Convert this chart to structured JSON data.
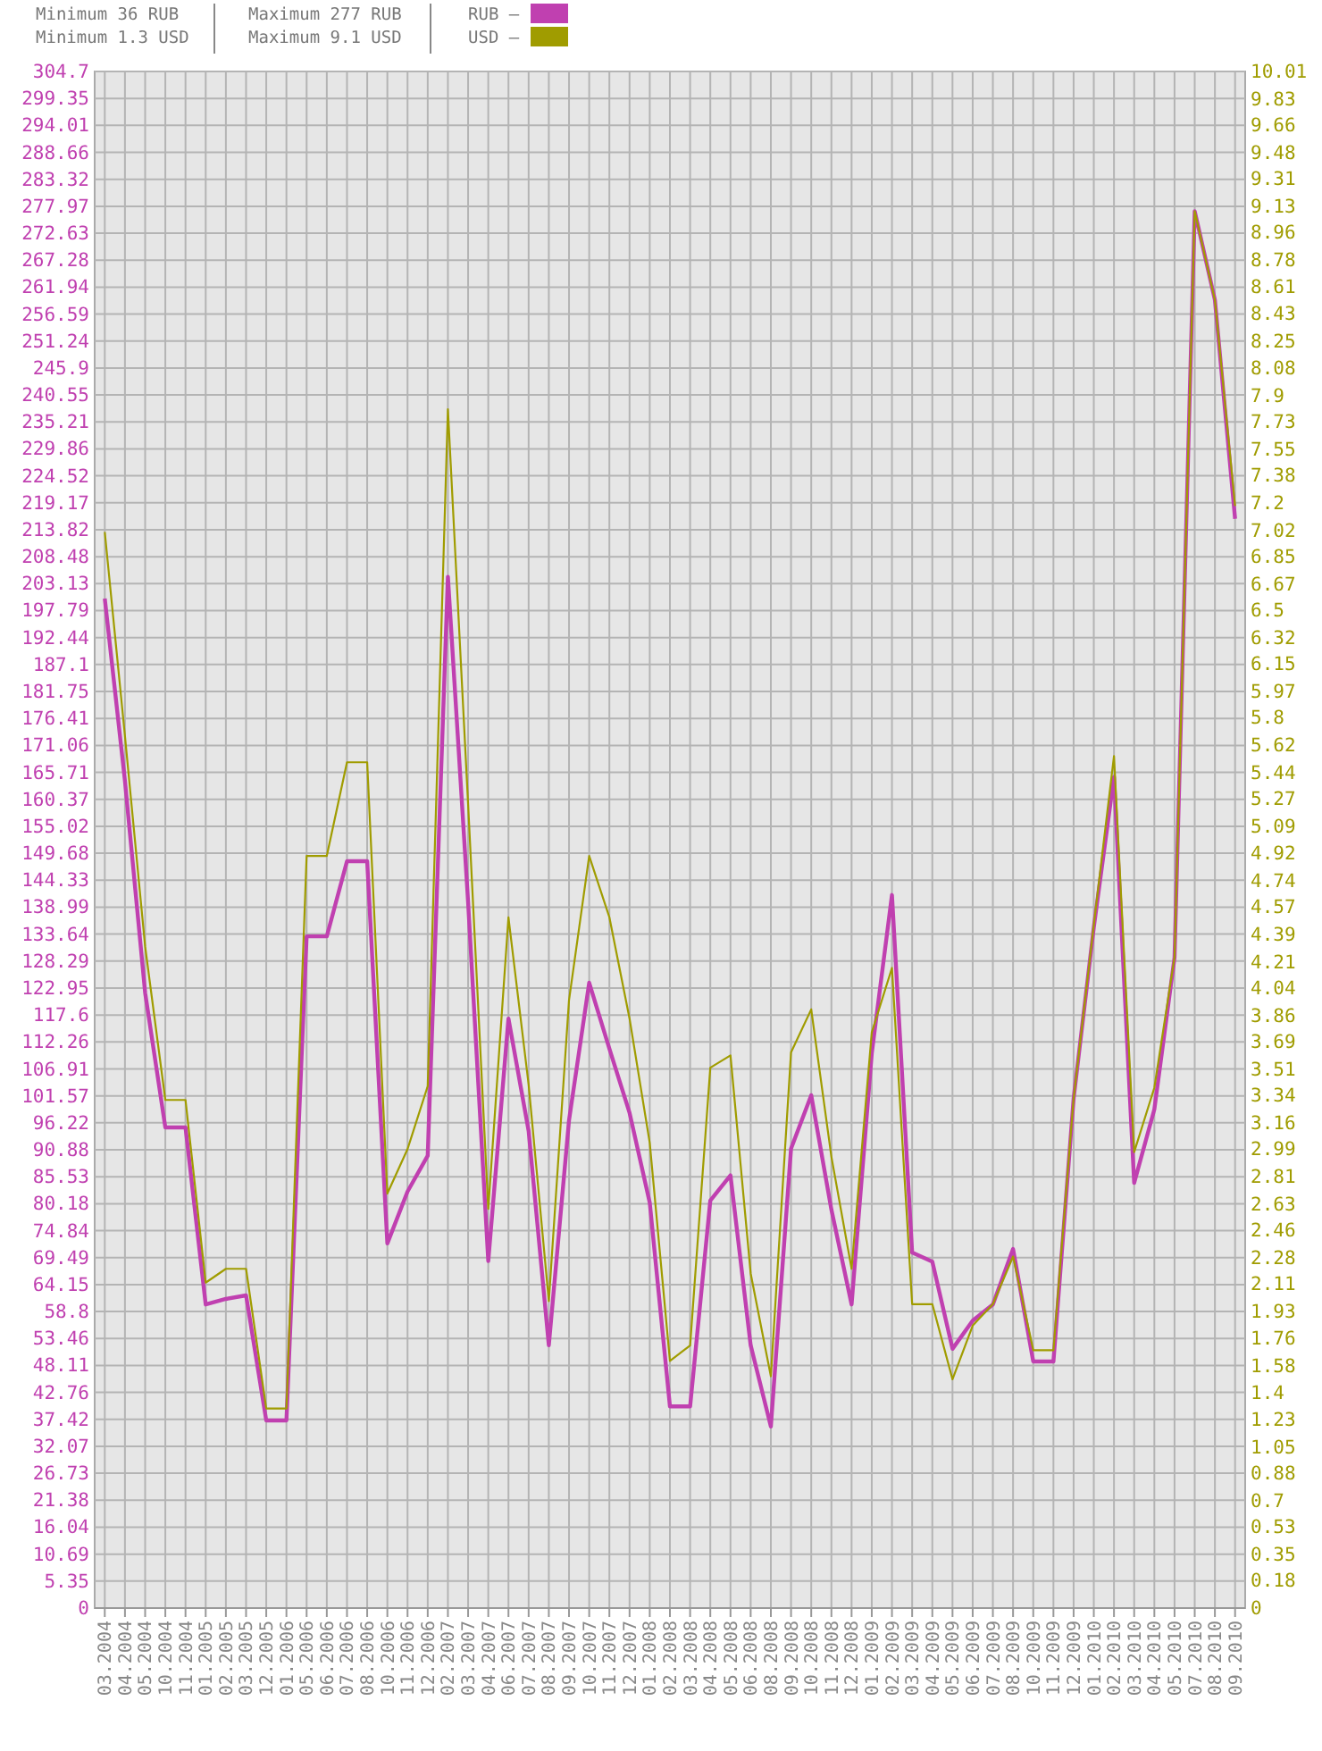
{
  "chart_data": {
    "type": "line",
    "annotations": [
      "Minimum 36 RUB",
      "Minimum 1.3 USD",
      "Maximum 277 RUB",
      "Maximum 9.1 USD"
    ],
    "categories": [
      "03.2004",
      "04.2004",
      "05.2004",
      "10.2004",
      "11.2004",
      "01.2005",
      "02.2005",
      "03.2005",
      "12.2005",
      "01.2006",
      "05.2006",
      "06.2006",
      "07.2006",
      "08.2006",
      "10.2006",
      "11.2006",
      "12.2006",
      "02.2007",
      "03.2007",
      "04.2007",
      "06.2007",
      "07.2007",
      "08.2007",
      "09.2007",
      "10.2007",
      "11.2007",
      "12.2007",
      "01.2008",
      "02.2008",
      "03.2008",
      "04.2008",
      "05.2008",
      "06.2008",
      "08.2008",
      "09.2008",
      "10.2008",
      "11.2008",
      "12.2008",
      "01.2009",
      "02.2009",
      "03.2009",
      "04.2009",
      "05.2009",
      "06.2009",
      "07.2009",
      "08.2009",
      "10.2009",
      "11.2009",
      "12.2009",
      "01.2010",
      "02.2010",
      "03.2010",
      "04.2010",
      "05.2010",
      "07.2010",
      "08.2010",
      "09.2010"
    ],
    "series": [
      {
        "name": "RUB –",
        "color": "#c040b0",
        "values": [
          200.2,
          164,
          122,
          95.3,
          95.3,
          60.2,
          61.3,
          62,
          37.2,
          37.2,
          133.2,
          133.2,
          148.1,
          148.1,
          72.3,
          82.6,
          89.7,
          204.5,
          140,
          68.8,
          116.9,
          94.6,
          52.1,
          96.7,
          124,
          110.9,
          98.2,
          80.4,
          40,
          40,
          80.8,
          85.8,
          52.1,
          36,
          91.1,
          101.7,
          79,
          60.2,
          110,
          141.4,
          70.5,
          68.7,
          51.4,
          57,
          60.2,
          71.2,
          48.9,
          48.9,
          101,
          135,
          164.8,
          84.3,
          98.9,
          129,
          277,
          259.4,
          216
        ]
      },
      {
        "name": "USD –",
        "color": "#a09c00",
        "axis": "y2",
        "values": [
          7.01,
          5.68,
          4.31,
          3.31,
          3.31,
          2.12,
          2.21,
          2.21,
          1.3,
          1.3,
          4.9,
          4.9,
          5.51,
          5.51,
          2.7,
          2.99,
          3.4,
          7.81,
          5.24,
          2.6,
          4.5,
          3.41,
          2,
          3.96,
          4.9,
          4.5,
          3.84,
          3.03,
          1.61,
          1.71,
          3.52,
          3.6,
          2.18,
          1.51,
          3.62,
          3.9,
          2.94,
          2.21,
          3.75,
          4.17,
          1.98,
          1.98,
          1.49,
          1.84,
          1.98,
          2.29,
          1.68,
          1.68,
          3.32,
          4.45,
          5.55,
          2.97,
          3.39,
          4.24,
          9.1,
          8.52,
          7.18
        ]
      }
    ],
    "ylim": [
      0,
      304.7
    ],
    "yticks": [
      0,
      5.35,
      10.69,
      16.04,
      21.38,
      26.73,
      32.07,
      37.42,
      42.76,
      48.11,
      53.46,
      58.8,
      64.15,
      69.49,
      74.84,
      80.18,
      85.53,
      90.88,
      96.22,
      101.57,
      106.91,
      112.26,
      117.6,
      122.95,
      128.29,
      133.64,
      138.99,
      144.33,
      149.68,
      155.02,
      160.37,
      165.71,
      171.06,
      176.41,
      181.75,
      187.1,
      192.44,
      197.79,
      203.13,
      208.48,
      213.82,
      219.17,
      224.52,
      229.86,
      235.21,
      240.55,
      245.9,
      251.24,
      256.59,
      261.94,
      267.28,
      272.63,
      277.97,
      283.32,
      288.66,
      294.01,
      299.35,
      304.7
    ],
    "y2lim": [
      0,
      10.01
    ],
    "y2ticks": [
      0,
      0.18,
      0.35,
      0.53,
      0.7,
      0.88,
      1.05,
      1.23,
      1.4,
      1.58,
      1.76,
      1.93,
      2.11,
      2.28,
      2.46,
      2.63,
      2.81,
      2.99,
      3.16,
      3.34,
      3.51,
      3.69,
      3.86,
      4.04,
      4.21,
      4.39,
      4.57,
      4.74,
      4.92,
      5.09,
      5.27,
      5.44,
      5.62,
      5.8,
      5.97,
      6.15,
      6.32,
      6.5,
      6.67,
      6.85,
      7.02,
      7.2,
      7.38,
      7.55,
      7.73,
      7.9,
      8.08,
      8.25,
      8.43,
      8.61,
      8.78,
      8.96,
      9.13,
      9.31,
      9.48,
      9.66,
      9.83,
      10.01
    ],
    "grid": true,
    "legend": "top",
    "marker": "none",
    "line_style": "solid"
  }
}
